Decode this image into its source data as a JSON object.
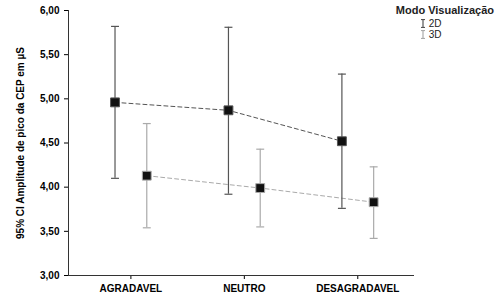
{
  "chart_data": {
    "type": "errorbar",
    "y_label": "95% CI Amplitude de pico da CEP em µS",
    "categories": [
      "AGRADAVEL",
      "NEUTRO",
      "DESAGRADAVEL"
    ],
    "legend_title": "Modo Visualização",
    "legend": "right",
    "marker": "square",
    "line_style": "dashed",
    "ylim": [
      3.0,
      6.0
    ],
    "yticks": [
      {
        "value": 3.0,
        "label": "3,00"
      },
      {
        "value": 3.5,
        "label": "3,50"
      },
      {
        "value": 4.0,
        "label": "4,00"
      },
      {
        "value": 4.5,
        "label": "4,50"
      },
      {
        "value": 5.0,
        "label": "5,00"
      },
      {
        "value": 5.5,
        "label": "5,50"
      },
      {
        "value": 6.0,
        "label": "6,00"
      }
    ],
    "series": [
      {
        "name": "2D",
        "color": "#555555",
        "values": [
          4.96,
          4.87,
          4.52
        ],
        "ci_low": [
          4.1,
          3.92,
          3.76
        ],
        "ci_high": [
          5.82,
          5.81,
          5.28
        ]
      },
      {
        "name": "3D",
        "color": "#aaaaaa",
        "values": [
          4.13,
          3.99,
          3.83
        ],
        "ci_low": [
          3.54,
          3.55,
          3.42
        ],
        "ci_high": [
          4.72,
          4.43,
          4.23
        ]
      }
    ]
  }
}
